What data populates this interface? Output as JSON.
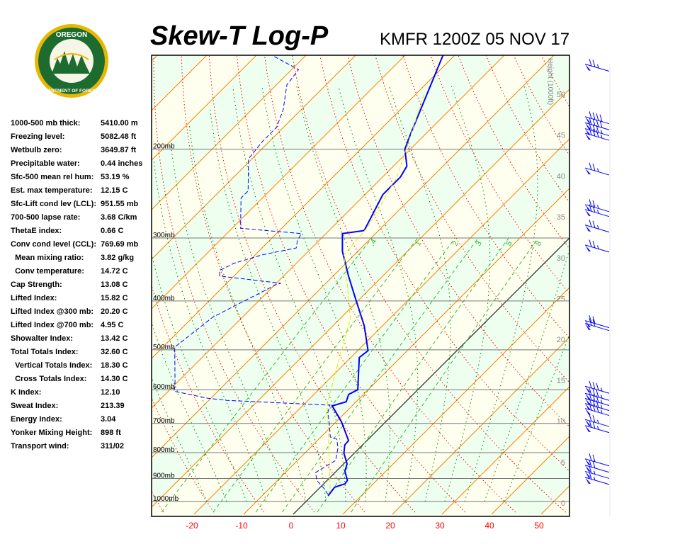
{
  "header": {
    "title": "Skew-T Log-P",
    "station": "KMFR 1200Z 05 NOV 17"
  },
  "logo": {
    "text_top": "OREGON",
    "text_bottom": "DEPARTMENT OF FORESTRY"
  },
  "stats": [
    {
      "label": "1000-500 mb thick:",
      "value": "5410.00 m"
    },
    {
      "label": "Freezing level:",
      "value": "5082.48 ft"
    },
    {
      "label": "Wetbulb zero:",
      "value": "3649.87 ft"
    },
    {
      "label": "Precipitable water:",
      "value": "0.44 inches"
    },
    {
      "label": "Sfc-500 mean rel hum:",
      "value": "53.19 %"
    },
    {
      "label": "Est. max temperature:",
      "value": "12.15 C"
    },
    {
      "label": "Sfc-Lift cond lev (LCL):",
      "value": "951.55 mb"
    },
    {
      "label": "700-500 lapse rate:",
      "value": "3.68 C/km"
    },
    {
      "label": "ThetaE index:",
      "value": "0.66 C"
    },
    {
      "label": "Conv cond level (CCL):",
      "value": "769.69 mb"
    },
    {
      "label": "  Mean mixing ratio:",
      "value": "3.82 g/kg"
    },
    {
      "label": "  Conv temperature:",
      "value": "14.72 C"
    },
    {
      "label": "Cap Strength:",
      "value": "13.08 C"
    },
    {
      "label": "Lifted Index:",
      "value": "15.82 C"
    },
    {
      "label": "Lifted Index @300 mb:",
      "value": "20.20 C"
    },
    {
      "label": "Lifted Index @700 mb:",
      "value": "4.95 C"
    },
    {
      "label": "Showalter Index:",
      "value": "13.42 C"
    },
    {
      "label": "Total Totals Index:",
      "value": "32.60 C"
    },
    {
      "label": "  Vertical Totals Index:",
      "value": "18.30 C"
    },
    {
      "label": "  Cross Totals Index:",
      "value": "14.30 C"
    },
    {
      "label": "K Index:",
      "value": "12.10"
    },
    {
      "label": "Sweat Index:",
      "value": "213.39"
    },
    {
      "label": "Energy Index:",
      "value": "3.04"
    },
    {
      "label": "Yonker Mixing Height:",
      "value": "898 ft"
    },
    {
      "label": "Transport wind:",
      "value": "311/02"
    }
  ],
  "chart_data": {
    "type": "line",
    "xlabel": "",
    "ylabel": "",
    "x_ticks": [
      "-20",
      "-10",
      "0",
      "10",
      "20",
      "30",
      "40",
      "50"
    ],
    "x_tick_values": [
      -20,
      -10,
      0,
      10,
      20,
      30,
      40,
      50
    ],
    "xlim": [
      -29,
      55
    ],
    "pressure_levels": [
      200,
      300,
      400,
      500,
      600,
      700,
      800,
      900,
      1000
    ],
    "pressure_labels": [
      "200mb",
      "300mb",
      "400mb",
      "500mb",
      "600mb",
      "700mb",
      "800mb",
      "900mb",
      "1000mb"
    ],
    "ylim_mb": [
      1030,
      130
    ],
    "height_axis": {
      "label": "Height (1000ft)",
      "ticks": [
        "0",
        "5",
        "10",
        "15",
        "20",
        "25",
        "30",
        "35",
        "40",
        "45",
        "50"
      ]
    },
    "mixing_ratio_labels": [
      ".4",
      "1",
      "2",
      "3",
      "5",
      "8"
    ],
    "mixing_ratio_values": [
      0.4,
      1,
      2,
      3,
      5,
      8
    ],
    "colors": {
      "temperature": "#0000ff",
      "dewpoint": "#0000ff",
      "parcel": "#e8e800",
      "isotherm": "#ff8000",
      "dry_adiabat": "#ff0000",
      "moist_adiabat": "#008000",
      "mixing_ratio": "#33bb33",
      "band_a": "#fffff0",
      "band_b": "#eefff0",
      "axis_ticks": "#ff0000"
    },
    "series": [
      {
        "name": "temperature",
        "style": "solid",
        "points": [
          [
            974,
            3.3
          ],
          [
            937,
            2.9
          ],
          [
            922,
            4.3
          ],
          [
            908,
            4.1
          ],
          [
            870,
            1.7
          ],
          [
            842,
            0.7
          ],
          [
            802,
            -2.1
          ],
          [
            772,
            -3.6
          ],
          [
            757,
            -3.7
          ],
          [
            694,
            -9.0
          ],
          [
            646,
            -14.0
          ],
          [
            634,
            -12.0
          ],
          [
            613,
            -13.0
          ],
          [
            600,
            -12.1
          ],
          [
            518,
            -18.3
          ],
          [
            502,
            -17.9
          ],
          [
            448,
            -23.7
          ],
          [
            400,
            -30.3
          ],
          [
            357,
            -36.9
          ],
          [
            319,
            -43.1
          ],
          [
            294,
            -46.7
          ],
          [
            290,
            -42.9
          ],
          [
            246,
            -46.4
          ],
          [
            227,
            -46.4
          ],
          [
            216,
            -47.3
          ],
          [
            200,
            -51.1
          ],
          [
            186,
            -53.1
          ],
          [
            130,
            -62.4
          ]
        ]
      },
      {
        "name": "dewpoint",
        "style": "dashed",
        "points": [
          [
            968,
            3.0
          ],
          [
            943,
            1.1
          ],
          [
            908,
            -2.1
          ],
          [
            876,
            -3.9
          ],
          [
            851,
            -3.1
          ],
          [
            829,
            -2.3
          ],
          [
            782,
            -4.4
          ],
          [
            752,
            -6.4
          ],
          [
            745,
            -8.1
          ],
          [
            705,
            -10.7
          ],
          [
            665,
            -13.6
          ],
          [
            644,
            -14.6
          ],
          [
            630,
            -36.4
          ],
          [
            624,
            -40.6
          ],
          [
            604,
            -48.9
          ],
          [
            590,
            -49.7
          ],
          [
            494,
            -57.6
          ],
          [
            431,
            -56
          ],
          [
            400,
            -52.9
          ],
          [
            371,
            -49.7
          ],
          [
            369,
            -49.1
          ],
          [
            357,
            -62.9
          ],
          [
            348,
            -64
          ],
          [
            337,
            -62.6
          ],
          [
            324,
            -58.6
          ],
          [
            314,
            -53.1
          ],
          [
            304,
            -54.3
          ],
          [
            294,
            -55
          ],
          [
            287,
            -68.3
          ],
          [
            250,
            -74.3
          ],
          [
            242,
            -74.3
          ],
          [
            209,
            -80.7
          ],
          [
            193,
            -81.4
          ],
          [
            181,
            -81.4
          ],
          [
            167,
            -83.6
          ],
          [
            149,
            -87.9
          ],
          [
            139,
            -88.6
          ],
          [
            131,
            -96.1
          ]
        ]
      },
      {
        "name": "parcel",
        "style": "dashed",
        "points": [
          [
            968,
            3.0
          ],
          [
            943,
            2.3
          ],
          [
            640,
            -15.4
          ],
          [
            544,
            -20.7
          ],
          [
            434,
            -27.9
          ],
          [
            369,
            -35.7
          ],
          [
            324,
            -42.1
          ],
          [
            285,
            -42.9
          ],
          [
            227,
            -47.1
          ],
          [
            154,
            -58.6
          ]
        ]
      }
    ],
    "wind_barbs": [
      {
        "p": 140,
        "kt": 25
      },
      {
        "p": 178,
        "kt": 40
      },
      {
        "p": 183,
        "kt": 40
      },
      {
        "p": 188,
        "kt": 35
      },
      {
        "p": 192,
        "kt": 35
      },
      {
        "p": 225,
        "kt": 25
      },
      {
        "p": 266,
        "kt": 25
      },
      {
        "p": 272,
        "kt": 25
      },
      {
        "p": 292,
        "kt": 25
      },
      {
        "p": 320,
        "kt": 25
      },
      {
        "p": 452,
        "kt": 20
      },
      {
        "p": 458,
        "kt": 20
      },
      {
        "p": 610,
        "kt": 35
      },
      {
        "p": 630,
        "kt": 35
      },
      {
        "p": 645,
        "kt": 35
      },
      {
        "p": 660,
        "kt": 35
      },
      {
        "p": 675,
        "kt": 35
      },
      {
        "p": 710,
        "kt": 25
      },
      {
        "p": 730,
        "kt": 25
      },
      {
        "p": 850,
        "kt": 20
      },
      {
        "p": 875,
        "kt": 20
      },
      {
        "p": 900,
        "kt": 15
      },
      {
        "p": 925,
        "kt": 15
      }
    ]
  }
}
